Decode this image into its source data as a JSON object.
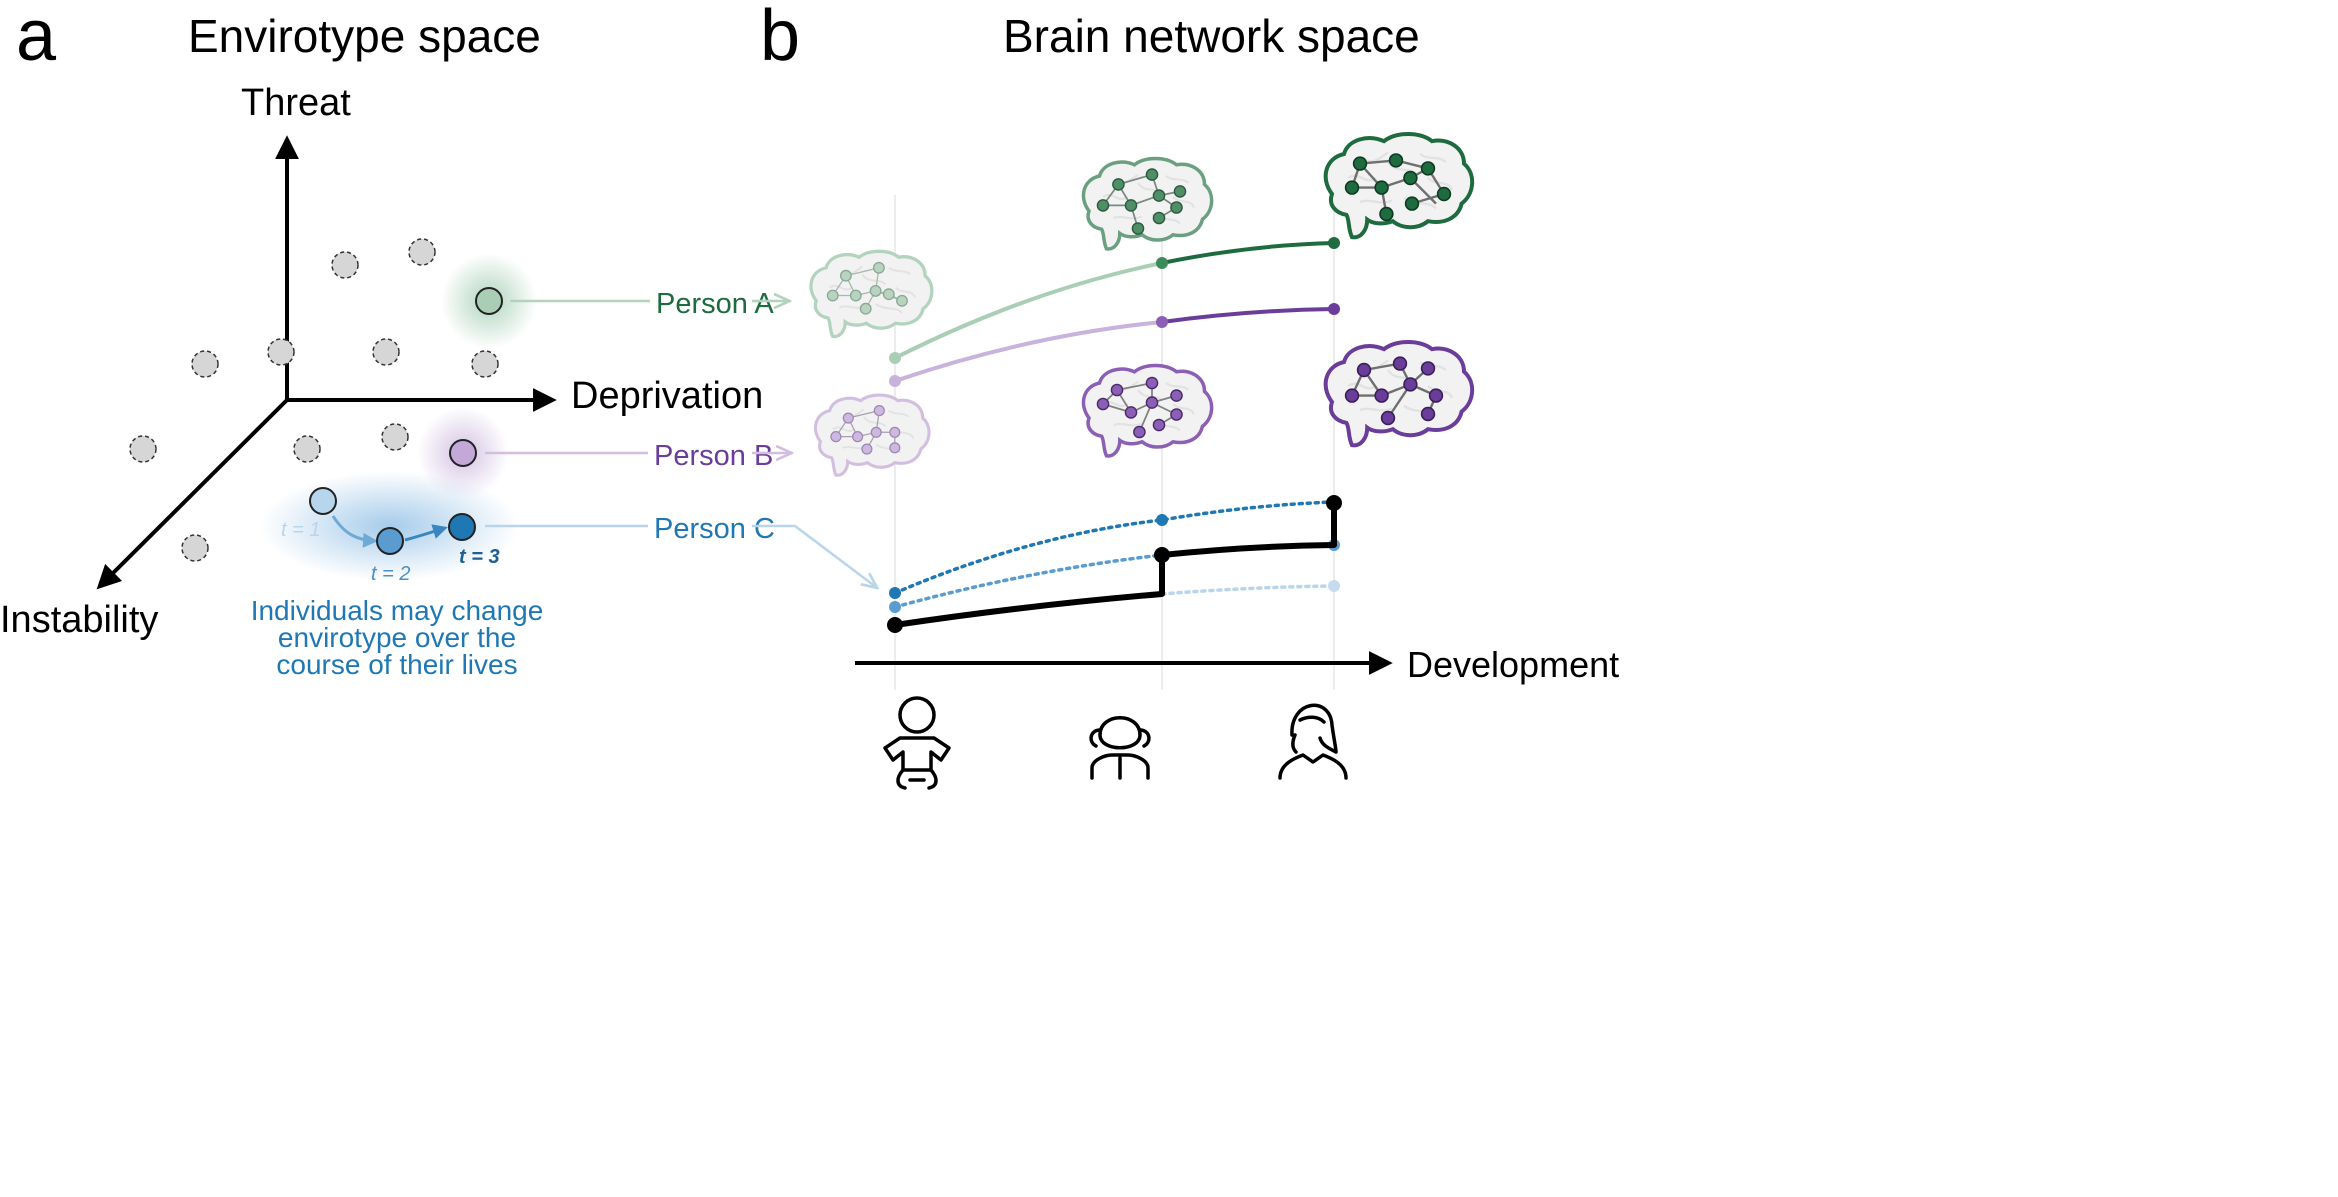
{
  "panels": {
    "a": {
      "letter": "a",
      "title": "Envirotype space"
    },
    "b": {
      "letter": "b",
      "title": "Brain network space"
    }
  },
  "axes": {
    "threat": "Threat",
    "deprivation": "Deprivation",
    "instability": "Instability",
    "development": "Development"
  },
  "persons": {
    "a": {
      "label": "Person A",
      "color": "#1d6b3f"
    },
    "b": {
      "label": "Person B",
      "color": "#6a3d9a"
    },
    "c": {
      "label": "Person C",
      "color": "#1f78b4"
    }
  },
  "time_labels": {
    "t1": "t = 1",
    "t2": "t = 2",
    "t3": "t = 3"
  },
  "note": {
    "line1": "Individuals may change",
    "line2": "envirotype over the",
    "line3": "course of their lives"
  },
  "icons": [
    "baby-icon",
    "child-icon",
    "adult-icon",
    "brain-icon"
  ],
  "colors": {
    "green": "#1d6b3f",
    "purple": "#6a3d9a",
    "blue": "#1f78b4",
    "black": "#000000",
    "grey_dot": "#d6d6d6"
  }
}
